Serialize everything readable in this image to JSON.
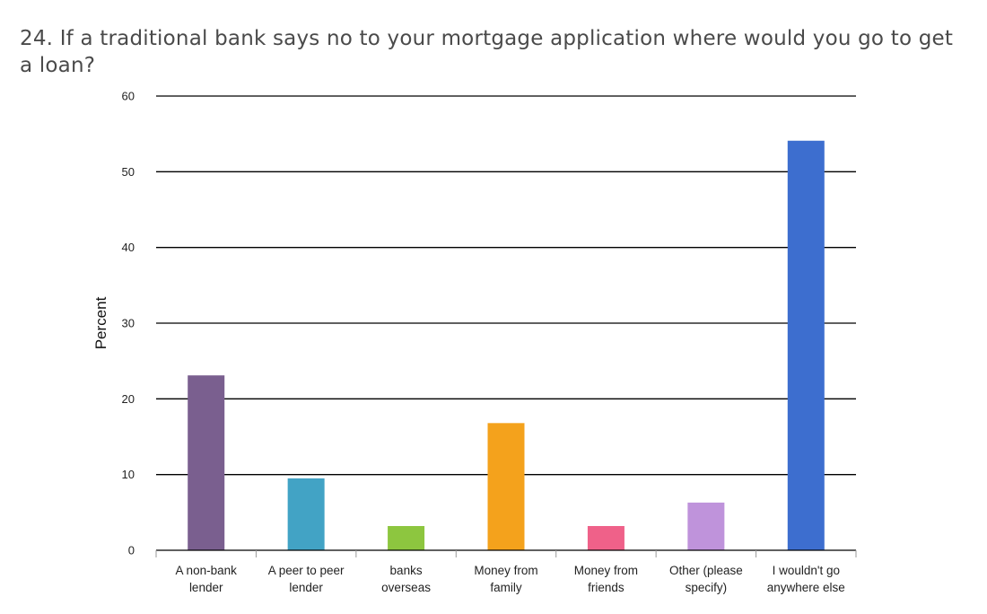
{
  "chart_data": {
    "type": "bar",
    "title": "24. If a traditional bank says no to your mortgage application where would you go to get a loan?",
    "ylabel": "Percent",
    "xlabel": "",
    "ylim": [
      0,
      60
    ],
    "yticks": [
      0,
      10,
      20,
      30,
      40,
      50,
      60
    ],
    "grid": true,
    "categories": [
      [
        "A non-bank",
        "lender"
      ],
      [
        "A peer to peer",
        "lender"
      ],
      [
        "banks",
        "overseas"
      ],
      [
        "Money from",
        "family"
      ],
      [
        "Money from",
        "friends"
      ],
      [
        "Other (please",
        "specify)"
      ],
      [
        "I wouldn't go",
        "anywhere else"
      ]
    ],
    "values": [
      23.1,
      9.5,
      3.2,
      16.8,
      3.2,
      6.3,
      54.1
    ],
    "colors": [
      "#7a5f8f",
      "#42a3c5",
      "#8dc63f",
      "#f4a21c",
      "#ef6189",
      "#bf93db",
      "#3d6ecf"
    ]
  }
}
